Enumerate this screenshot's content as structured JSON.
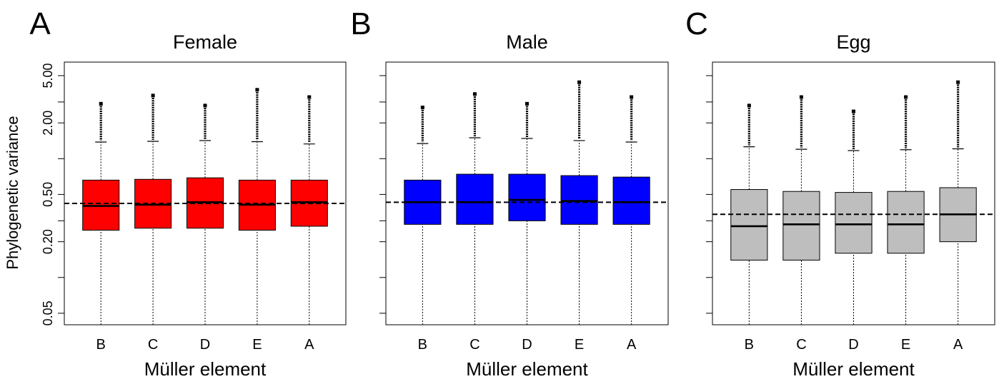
{
  "figure": {
    "ylabel": "Phylogenetic variance",
    "y_tick_labels": [
      "0.05",
      "0.20",
      "0.50",
      "2.00",
      "5.00"
    ]
  },
  "chart_data": [
    {
      "type": "boxplot",
      "panel": "A",
      "title": "Female",
      "xlabel": "Müller element",
      "ylabel": "Phylogenetic variance",
      "y_scale": "log",
      "ylim": [
        0.04,
        6.5
      ],
      "y_ticks": [
        0.05,
        0.1,
        0.2,
        0.3,
        0.5,
        1.0,
        2.0,
        3.0,
        5.0
      ],
      "y_tick_labels": [
        "0.05",
        "",
        "0.20",
        "",
        "0.50",
        "",
        "2.00",
        "",
        "5.00"
      ],
      "categories": [
        "B",
        "C",
        "D",
        "E",
        "A"
      ],
      "fill_color": "#ff0000",
      "reference_line": 0.42,
      "boxes": [
        {
          "category": "B",
          "whisker_low": 0.04,
          "q1": 0.25,
          "median": 0.4,
          "q3": 0.66,
          "whisker_high": 1.38,
          "outlier_max": 2.9
        },
        {
          "category": "C",
          "whisker_low": 0.04,
          "q1": 0.26,
          "median": 0.41,
          "q3": 0.67,
          "whisker_high": 1.4,
          "outlier_max": 3.4
        },
        {
          "category": "D",
          "whisker_low": 0.04,
          "q1": 0.26,
          "median": 0.43,
          "q3": 0.69,
          "whisker_high": 1.42,
          "outlier_max": 2.8
        },
        {
          "category": "E",
          "whisker_low": 0.04,
          "q1": 0.25,
          "median": 0.41,
          "q3": 0.66,
          "whisker_high": 1.39,
          "outlier_max": 3.8
        },
        {
          "category": "A",
          "whisker_low": 0.04,
          "q1": 0.27,
          "median": 0.43,
          "q3": 0.66,
          "whisker_high": 1.33,
          "outlier_max": 3.3
        }
      ]
    },
    {
      "type": "boxplot",
      "panel": "B",
      "title": "Male",
      "xlabel": "Müller element",
      "ylabel": "",
      "y_scale": "log",
      "ylim": [
        0.04,
        6.5
      ],
      "y_ticks": [
        0.05,
        0.1,
        0.2,
        0.3,
        0.5,
        1.0,
        2.0,
        3.0,
        5.0
      ],
      "y_tick_labels": [
        "",
        "",
        "",
        "",
        "",
        "",
        "",
        "",
        ""
      ],
      "categories": [
        "B",
        "C",
        "D",
        "E",
        "A"
      ],
      "fill_color": "#0000ff",
      "reference_line": 0.43,
      "boxes": [
        {
          "category": "B",
          "whisker_low": 0.04,
          "q1": 0.28,
          "median": 0.43,
          "q3": 0.66,
          "whisker_high": 1.34,
          "outlier_max": 2.7
        },
        {
          "category": "C",
          "whisker_low": 0.04,
          "q1": 0.28,
          "median": 0.43,
          "q3": 0.74,
          "whisker_high": 1.5,
          "outlier_max": 3.5
        },
        {
          "category": "D",
          "whisker_low": 0.04,
          "q1": 0.3,
          "median": 0.45,
          "q3": 0.74,
          "whisker_high": 1.48,
          "outlier_max": 2.9
        },
        {
          "category": "E",
          "whisker_low": 0.04,
          "q1": 0.28,
          "median": 0.44,
          "q3": 0.72,
          "whisker_high": 1.42,
          "outlier_max": 4.4
        },
        {
          "category": "A",
          "whisker_low": 0.04,
          "q1": 0.28,
          "median": 0.43,
          "q3": 0.7,
          "whisker_high": 1.38,
          "outlier_max": 3.3
        }
      ]
    },
    {
      "type": "boxplot",
      "panel": "C",
      "title": "Egg",
      "xlabel": "Müller element",
      "ylabel": "",
      "y_scale": "log",
      "ylim": [
        0.04,
        6.5
      ],
      "y_ticks": [
        0.05,
        0.1,
        0.2,
        0.3,
        0.5,
        1.0,
        2.0,
        3.0,
        5.0
      ],
      "y_tick_labels": [
        "",
        "",
        "",
        "",
        "",
        "",
        "",
        "",
        ""
      ],
      "categories": [
        "B",
        "C",
        "D",
        "E",
        "A"
      ],
      "fill_color": "#bebebe",
      "reference_line": 0.34,
      "boxes": [
        {
          "category": "B",
          "whisker_low": 0.04,
          "q1": 0.14,
          "median": 0.27,
          "q3": 0.55,
          "whisker_high": 1.26,
          "outlier_max": 2.8
        },
        {
          "category": "C",
          "whisker_low": 0.04,
          "q1": 0.14,
          "median": 0.28,
          "q3": 0.53,
          "whisker_high": 1.2,
          "outlier_max": 3.3
        },
        {
          "category": "D",
          "whisker_low": 0.04,
          "q1": 0.16,
          "median": 0.28,
          "q3": 0.52,
          "whisker_high": 1.17,
          "outlier_max": 2.5
        },
        {
          "category": "E",
          "whisker_low": 0.04,
          "q1": 0.16,
          "median": 0.28,
          "q3": 0.53,
          "whisker_high": 1.19,
          "outlier_max": 3.3
        },
        {
          "category": "A",
          "whisker_low": 0.04,
          "q1": 0.2,
          "median": 0.34,
          "q3": 0.57,
          "whisker_high": 1.21,
          "outlier_max": 4.4
        }
      ]
    }
  ]
}
